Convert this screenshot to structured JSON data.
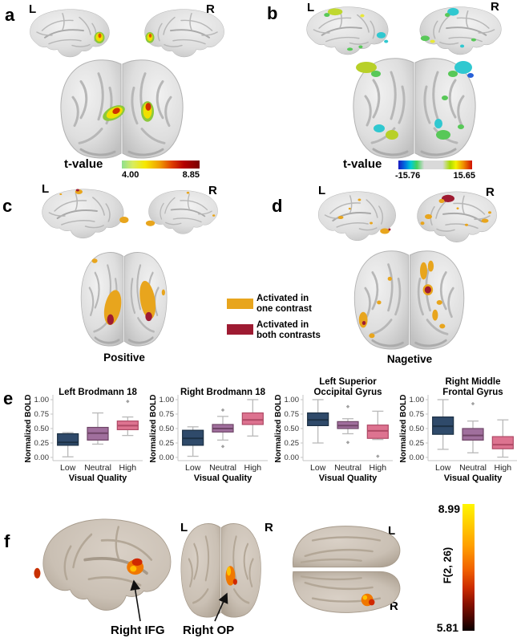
{
  "figure": {
    "panel_a": {
      "label": "a",
      "hemi_left": "L",
      "hemi_right": "R",
      "colorbar": {
        "title": "t-value",
        "min_label": "4.00",
        "max_label": "8.85",
        "gradient": [
          "#8fe08f",
          "#f6e800",
          "#f0a000",
          "#b40000",
          "#7a0000"
        ]
      }
    },
    "panel_b": {
      "label": "b",
      "hemi_left": "L",
      "hemi_right": "R",
      "colorbar": {
        "title": "t-value",
        "min_label": "-15.76",
        "max_label": "15.65",
        "gradient": [
          "#1818c0",
          "#00ccd4",
          "#42d25c",
          "#d9d9d9",
          "#f2f200",
          "#d01000"
        ]
      }
    },
    "panel_c": {
      "label": "c",
      "hemi_left": "L",
      "hemi_right": "R",
      "caption": "Positive"
    },
    "panel_d": {
      "label": "d",
      "hemi_left": "L",
      "hemi_right": "R",
      "caption": "Nagetive"
    },
    "panel_e": {
      "label": "e"
    },
    "panel_f": {
      "label": "f",
      "view2_left": "L",
      "view2_right": "R",
      "view3_left": "L",
      "view3_right": "R",
      "annotation_ifg": "Right IFG",
      "annotation_op": "Right OP",
      "colorbar": {
        "title": "F(2, 26)",
        "max_label": "8.99",
        "min_label": "5.81",
        "gradient": [
          "#fff600",
          "#ff9c00",
          "#f06000",
          "#8c1200",
          "#0a0000"
        ]
      }
    }
  },
  "legend": {
    "items": [
      {
        "label": "Activated in\none contrast",
        "color": "#E8A51D"
      },
      {
        "label": "Activated in\nboth contrasts",
        "color": "#9E1B32"
      }
    ]
  },
  "style": {
    "box_fills": [
      "#2F4A6A",
      "#A06F9D",
      "#DD7390"
    ],
    "box_strokes": [
      "#1C3044",
      "#6F4567",
      "#AF4A66"
    ],
    "whisker_color": "#b9b9b9",
    "outlier_color": "#a0a0a0",
    "axis_color": "#c4c4c4"
  },
  "chart_data": [
    {
      "type": "box",
      "title_lines": [
        "Left Brodmann 18"
      ],
      "ylabel": "Normalized BOLD",
      "xlabel": "Visual Quality",
      "categories": [
        "Low",
        "Neutral",
        "High"
      ],
      "ylim": [
        0,
        1
      ],
      "yticks": [
        {
          "v": 1.0,
          "label": "1.00"
        },
        {
          "v": 0.75,
          "label": "0.75"
        },
        {
          "v": 0.5,
          "label": "0.50"
        },
        {
          "v": 0.25,
          "label": "0.25"
        },
        {
          "v": 0.0,
          "label": "0.00"
        }
      ],
      "boxes": [
        {
          "whisker_low": 0.01,
          "q1": 0.21,
          "median": 0.26,
          "q3": 0.41,
          "whisker_high": 0.43,
          "outliers": []
        },
        {
          "whisker_low": 0.23,
          "q1": 0.3,
          "median": 0.42,
          "q3": 0.52,
          "whisker_high": 0.77,
          "outliers": []
        },
        {
          "whisker_low": 0.38,
          "q1": 0.48,
          "median": 0.55,
          "q3": 0.63,
          "whisker_high": 0.7,
          "outliers": [
            0.97
          ]
        }
      ]
    },
    {
      "type": "box",
      "title_lines": [
        "Right Brodmann 18"
      ],
      "ylabel": "Normalized BOLD",
      "xlabel": "Visual Quality",
      "categories": [
        "Low",
        "Neutral",
        "High"
      ],
      "ylim": [
        0,
        1
      ],
      "yticks": [
        {
          "v": 1.0,
          "label": "1.00"
        },
        {
          "v": 0.75,
          "label": "0.75"
        },
        {
          "v": 0.5,
          "label": "0.50"
        },
        {
          "v": 0.25,
          "label": "0.25"
        },
        {
          "v": 0.0,
          "label": "0.00"
        }
      ],
      "boxes": [
        {
          "whisker_low": 0.02,
          "q1": 0.21,
          "median": 0.33,
          "q3": 0.47,
          "whisker_high": 0.53,
          "outliers": []
        },
        {
          "whisker_low": 0.3,
          "q1": 0.44,
          "median": 0.5,
          "q3": 0.57,
          "whisker_high": 0.71,
          "outliers": [
            0.82,
            0.19
          ]
        },
        {
          "whisker_low": 0.37,
          "q1": 0.57,
          "median": 0.65,
          "q3": 0.77,
          "whisker_high": 1.0,
          "outliers": []
        }
      ]
    },
    {
      "type": "box",
      "title_lines": [
        "Left Superior",
        "Occipital Gyrus"
      ],
      "ylabel": "Normalized BOLD",
      "xlabel": "Visual Quality",
      "categories": [
        "Low",
        "Neutral",
        "High"
      ],
      "ylim": [
        0,
        1
      ],
      "yticks": [
        {
          "v": 1.0,
          "label": "1.00"
        },
        {
          "v": 0.75,
          "label": "0.75"
        },
        {
          "v": 0.5,
          "label": "0.50"
        },
        {
          "v": 0.25,
          "label": "0.25"
        },
        {
          "v": 0.0,
          "label": "0.00"
        }
      ],
      "boxes": [
        {
          "whisker_low": 0.25,
          "q1": 0.55,
          "median": 0.65,
          "q3": 0.77,
          "whisker_high": 1.0,
          "outliers": []
        },
        {
          "whisker_low": 0.41,
          "q1": 0.5,
          "median": 0.55,
          "q3": 0.62,
          "whisker_high": 0.67,
          "outliers": [
            0.88,
            0.26
          ]
        },
        {
          "whisker_low": 0.31,
          "q1": 0.33,
          "median": 0.46,
          "q3": 0.56,
          "whisker_high": 0.8,
          "outliers": [
            0.02
          ]
        }
      ]
    },
    {
      "type": "box",
      "title_lines": [
        "Right Middle",
        "Frontal Gyrus"
      ],
      "ylabel": "Normalized BOLD",
      "xlabel": "Visual Quality",
      "categories": [
        "Low",
        "Neutral",
        "High"
      ],
      "ylim": [
        0,
        1
      ],
      "yticks": [
        {
          "v": 1.0,
          "label": "1.00"
        },
        {
          "v": 0.75,
          "label": "0.75"
        },
        {
          "v": 0.5,
          "label": "0.50"
        },
        {
          "v": 0.25,
          "label": "0.25"
        },
        {
          "v": 0.0,
          "label": "0.00"
        }
      ],
      "boxes": [
        {
          "whisker_low": 0.14,
          "q1": 0.4,
          "median": 0.54,
          "q3": 0.7,
          "whisker_high": 1.0,
          "outliers": []
        },
        {
          "whisker_low": 0.08,
          "q1": 0.3,
          "median": 0.38,
          "q3": 0.5,
          "whisker_high": 0.63,
          "outliers": [
            0.93
          ]
        },
        {
          "whisker_low": 0.005,
          "q1": 0.15,
          "median": 0.22,
          "q3": 0.36,
          "whisker_high": 0.65,
          "outliers": []
        }
      ]
    }
  ]
}
